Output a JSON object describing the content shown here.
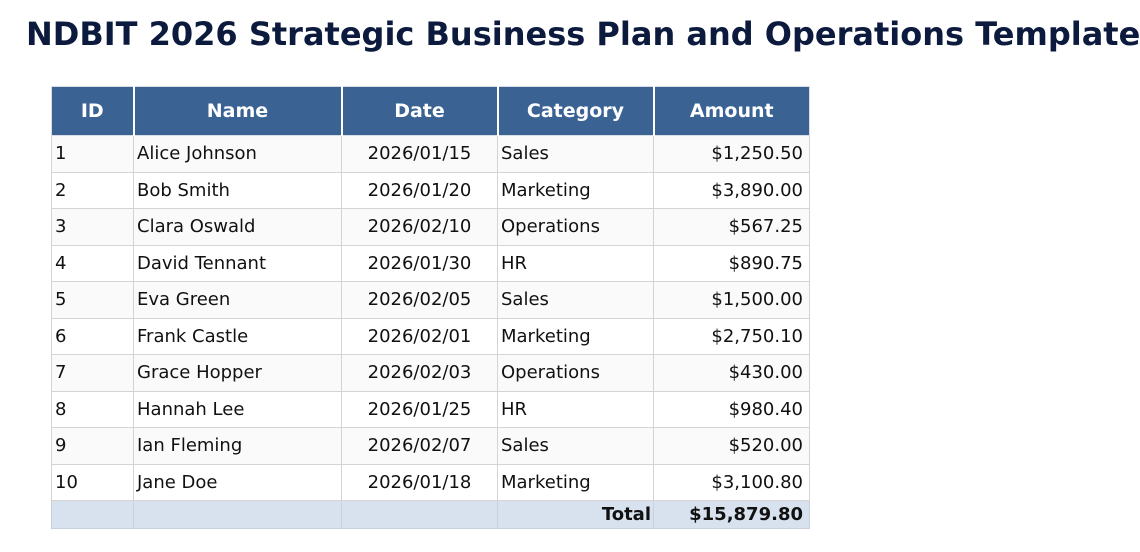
{
  "title": "NDBIT 2026 Strategic Business Plan and Operations Template",
  "table": {
    "headers": [
      "ID",
      "Name",
      "Date",
      "Category",
      "Amount"
    ],
    "rows": [
      {
        "id": "1",
        "name": "Alice Johnson",
        "date": "2026/01/15",
        "category": "Sales",
        "amount": "$1,250.50"
      },
      {
        "id": "2",
        "name": "Bob Smith",
        "date": "2026/01/20",
        "category": "Marketing",
        "amount": "$3,890.00"
      },
      {
        "id": "3",
        "name": "Clara Oswald",
        "date": "2026/02/10",
        "category": "Operations",
        "amount": "$567.25"
      },
      {
        "id": "4",
        "name": "David Tennant",
        "date": "2026/01/30",
        "category": "HR",
        "amount": "$890.75"
      },
      {
        "id": "5",
        "name": "Eva Green",
        "date": "2026/02/05",
        "category": "Sales",
        "amount": "$1,500.00"
      },
      {
        "id": "6",
        "name": "Frank Castle",
        "date": "2026/02/01",
        "category": "Marketing",
        "amount": "$2,750.10"
      },
      {
        "id": "7",
        "name": "Grace Hopper",
        "date": "2026/02/03",
        "category": "Operations",
        "amount": "$430.00"
      },
      {
        "id": "8",
        "name": "Hannah Lee",
        "date": "2026/01/25",
        "category": "HR",
        "amount": "$980.40"
      },
      {
        "id": "9",
        "name": "Ian Fleming",
        "date": "2026/02/07",
        "category": "Sales",
        "amount": "$520.00"
      },
      {
        "id": "10",
        "name": "Jane Doe",
        "date": "2026/01/18",
        "category": "Marketing",
        "amount": "$3,100.80"
      }
    ],
    "total_label": "Total",
    "total_value": "$15,879.80"
  },
  "colors": {
    "header_bg": "#3a6394",
    "header_text": "#ffffff",
    "title_text": "#0b1a3d",
    "total_row_bg": "#d8e2ef"
  }
}
